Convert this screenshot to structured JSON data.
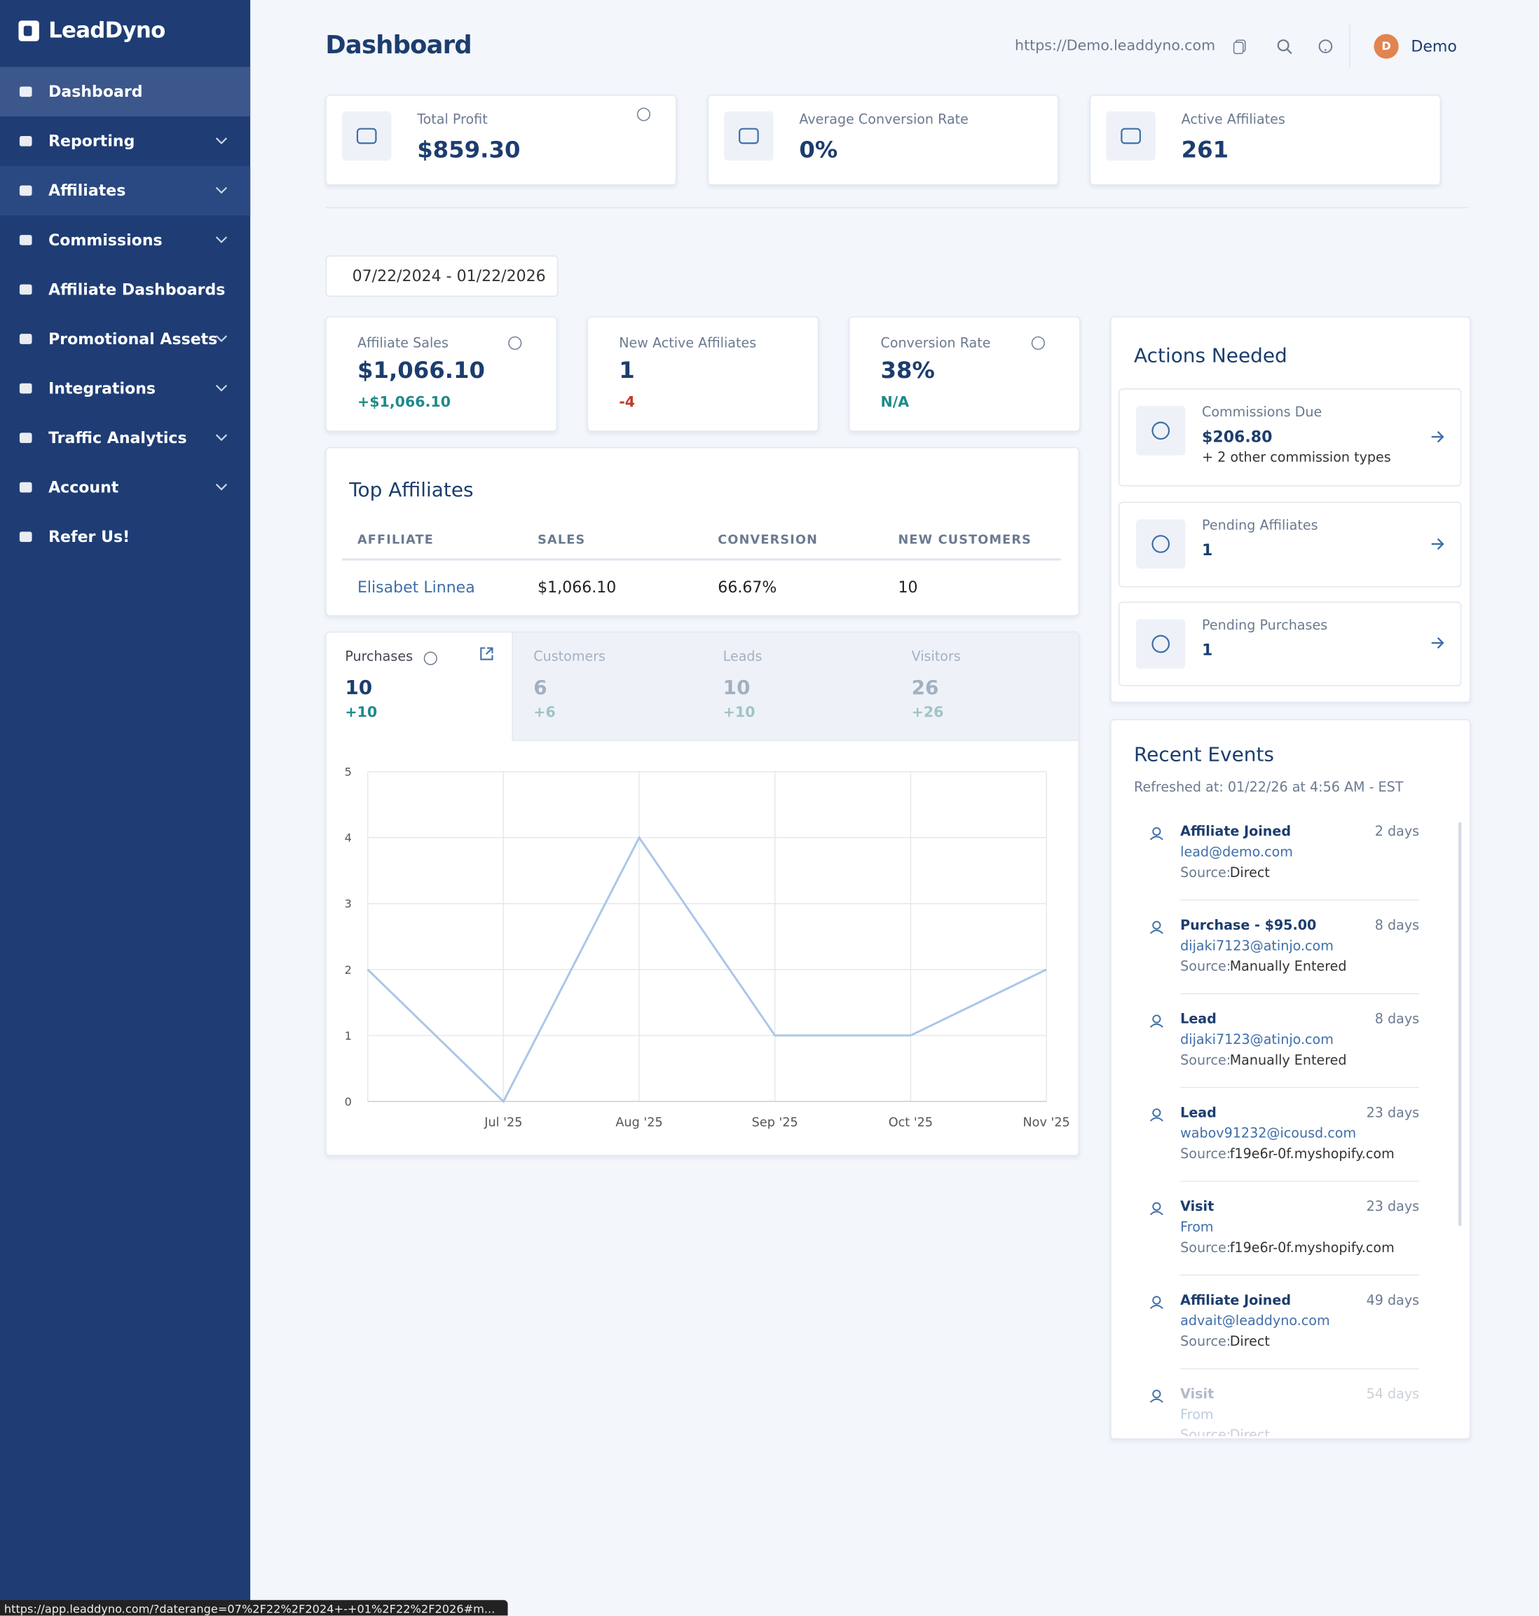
{
  "sidebar": {
    "brand": "LeadDyno",
    "items": [
      {
        "label": "Dashboard",
        "submenu": false
      },
      {
        "label": "Reporting",
        "submenu": true
      },
      {
        "label": "Affiliates",
        "submenu": true
      },
      {
        "label": "Commissions",
        "submenu": true
      },
      {
        "label": "Affiliate Dashboards",
        "submenu": false
      },
      {
        "label": "Promotional Assets",
        "submenu": true
      },
      {
        "label": "Integrations",
        "submenu": true
      },
      {
        "label": "Traffic Analytics",
        "submenu": true
      },
      {
        "label": "Account",
        "submenu": true
      },
      {
        "label": "Refer Us!",
        "submenu": false
      }
    ]
  },
  "header": {
    "title": "Dashboard",
    "url": "https://Demo.leaddyno.com",
    "user_initial": "D",
    "user": "Demo"
  },
  "summary": [
    {
      "label": "Total Profit",
      "value": "$859.30"
    },
    {
      "label": "Average Conversion Rate",
      "value": "0%"
    },
    {
      "label": "Active Affiliates",
      "value": "261"
    }
  ],
  "date_range": "07/22/2024 - 01/22/2026",
  "kpis": [
    {
      "label": "Affiliate Sales",
      "value": "$1,066.10",
      "change": "+$1,066.10"
    },
    {
      "label": "New Active Affiliates",
      "value": "1",
      "change": "-4"
    },
    {
      "label": "Conversion Rate",
      "value": "38%",
      "change": "N/A"
    }
  ],
  "top_affiliates": {
    "title": "Top Affiliates",
    "columns": [
      "AFFILIATE",
      "SALES",
      "CONVERSION",
      "NEW CUSTOMERS"
    ],
    "rows": [
      [
        "Elisabet Linnea",
        "$1,066.10",
        "66.67%",
        "10"
      ]
    ]
  },
  "tabs": [
    {
      "label": "Purchases",
      "value": "10",
      "change": "+10"
    },
    {
      "label": "Customers",
      "value": "6",
      "change": "+6"
    },
    {
      "label": "Leads",
      "value": "10",
      "change": "+10"
    },
    {
      "label": "Visitors",
      "value": "26",
      "change": "+26"
    }
  ],
  "chart_data": {
    "type": "line",
    "categories": [
      null,
      "Jul '25",
      "Aug '25",
      "Sep '25",
      "Oct '25",
      "Nov '25"
    ],
    "series": [
      {
        "name": "Purchases",
        "color": "#aac6e8",
        "values": [
          2,
          0,
          4,
          1,
          1,
          2
        ]
      }
    ],
    "ylim": [
      0,
      5
    ],
    "yticks": [
      0,
      1,
      2,
      3,
      4,
      5
    ],
    "grid": true
  },
  "actions": {
    "title": "Actions Needed",
    "items": [
      {
        "label": "Commissions Due",
        "value": "$206.80",
        "note": "+ 2 other commission types"
      },
      {
        "label": "Pending Affiliates",
        "value": "1"
      },
      {
        "label": "Pending Purchases",
        "value": "1"
      }
    ]
  },
  "events": {
    "title": "Recent Events",
    "refreshed": "Refreshed at: 01/22/26 at 4:56 AM - EST",
    "source_label": "Source:",
    "items": [
      {
        "title": "Affiliate Joined",
        "age": "2 days",
        "detail": "lead@demo.com",
        "source": "Direct"
      },
      {
        "title": "Purchase - $95.00",
        "age": "8 days",
        "detail": "dijaki7123@atinjo.com",
        "source": "Manually Entered"
      },
      {
        "title": "Lead",
        "age": "8 days",
        "detail": "dijaki7123@atinjo.com",
        "source": "Manually Entered"
      },
      {
        "title": "Lead",
        "age": "23 days",
        "detail": "wabov91232@icousd.com",
        "source": "f19e6r-0f.myshopify.com"
      },
      {
        "title": "Visit",
        "age": "23 days",
        "detail": "From",
        "source": "f19e6r-0f.myshopify.com"
      },
      {
        "title": "Affiliate Joined",
        "age": "49 days",
        "detail": "advait@leaddyno.com",
        "source": "Direct"
      },
      {
        "title": "Visit",
        "age": "54 days",
        "detail": "From",
        "source": "Direct"
      }
    ]
  },
  "status_url": "https://app.leaddyno.com/?daterange=07%2F22%2F2024+-+01%2F22%2F2026#m..."
}
